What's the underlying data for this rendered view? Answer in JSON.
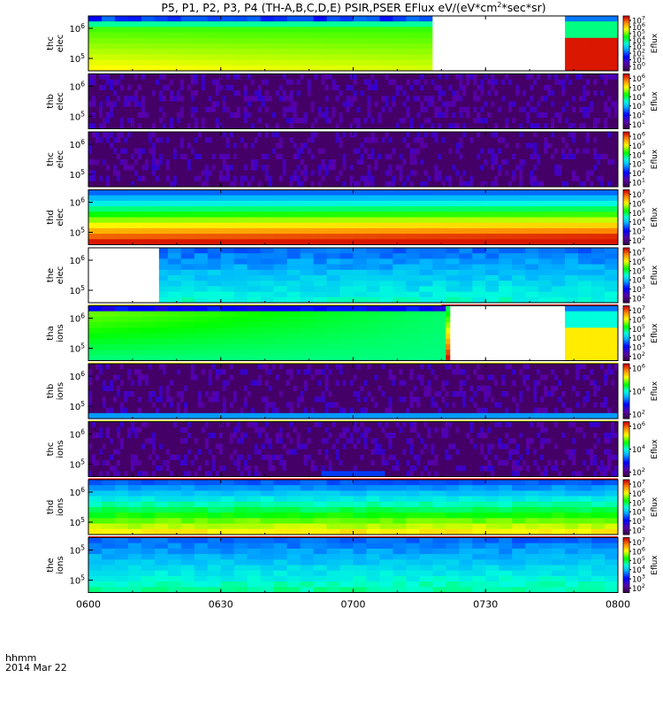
{
  "title_prefix": "P5, P1, P2, P3, P4 (TH-A,B,C,D,E) PSIR,PSER EFlux eV/(eV*cm",
  "title_exp": "2",
  "title_suffix": "*sec*sr)",
  "x_label_line1": "hhmm",
  "x_label_line2": "2014 Mar 22",
  "colors": {
    "panel_background": "#000000",
    "flag_yellow": "#ffff00",
    "flag_red": "#ff0000",
    "gap": "#ffffff"
  },
  "chart_data": {
    "type": "heatmap",
    "x_range": [
      "06:00",
      "08:00"
    ],
    "x_ticks": [
      "0600",
      "0630",
      "0700",
      "0730",
      "0800"
    ],
    "color_scale": "rainbow (purple-blue-cyan-green-yellow-red)",
    "colorbar_label": "Eflux",
    "panels": [
      {
        "name": "thc elec",
        "ylabel": [
          "thc",
          "elec"
        ],
        "y_ticks": [
          "10^6",
          "10^5"
        ],
        "y_scale": "log",
        "colorbar_ticks": [
          "10^7",
          "10^6",
          "10^5",
          "10^4",
          "10^3",
          "10^2",
          "10^1",
          "10^0"
        ],
        "data_gaps": [
          [
            "07:18",
            "07:48"
          ]
        ],
        "flag_bar": null
      },
      {
        "name": "thb elec",
        "ylabel": [
          "thb",
          "elec"
        ],
        "y_ticks": [
          "10^6",
          "10^5"
        ],
        "y_scale": "log",
        "colorbar_ticks": [
          "10^6",
          "10^5",
          "10^4",
          "10^3",
          "10^2",
          "10^1"
        ],
        "data_gaps": [],
        "flag_bar": null
      },
      {
        "name": "thc elec",
        "ylabel": [
          "thc",
          "elec"
        ],
        "y_ticks": [
          "10^6",
          "10^5"
        ],
        "y_scale": "log",
        "colorbar_ticks": [
          "10^6",
          "10^5",
          "10^4",
          "10^3",
          "10^2",
          "10^1"
        ],
        "data_gaps": [],
        "flag_bar": null
      },
      {
        "name": "thd elec",
        "ylabel": [
          "thd",
          "elec"
        ],
        "y_ticks": [
          "10^6",
          "10^5"
        ],
        "y_scale": "log",
        "colorbar_ticks": [
          "10^7",
          "10^6",
          "10^5",
          "10^4",
          "10^3",
          "10^2"
        ],
        "data_gaps": [],
        "flag_bar": null
      },
      {
        "name": "the elec",
        "ylabel": [
          "the",
          "elec"
        ],
        "y_ticks": [
          "10^6",
          "10^5"
        ],
        "y_scale": "log",
        "colorbar_ticks": [
          "10^7",
          "10^6",
          "10^5",
          "10^4",
          "10^3",
          "10^2"
        ],
        "data_gaps": [
          [
            "06:00",
            "06:16"
          ]
        ],
        "flag_bar": {
          "yellow_until": "07:20",
          "red_after": "07:20"
        }
      },
      {
        "name": "tha ions",
        "ylabel": [
          "tha",
          "ions"
        ],
        "y_ticks": [
          "10^6",
          "10^5"
        ],
        "y_scale": "log",
        "colorbar_ticks": [
          "10^7",
          "10^6",
          "10^5",
          "10^4",
          "10^3",
          "10^2"
        ],
        "data_gaps": [
          [
            "07:22",
            "07:48"
          ]
        ],
        "flag_bar": {
          "yellow_until": "08:00",
          "red_after": null
        }
      },
      {
        "name": "thb ions",
        "ylabel": [
          "thb",
          "ions"
        ],
        "y_ticks": [
          "10^6",
          "10^5"
        ],
        "y_scale": "log",
        "colorbar_ticks": [
          "10^6",
          "10^4",
          "10^2"
        ],
        "data_gaps": [],
        "flag_bar": {
          "yellow_until": "08:00",
          "red_after": null
        }
      },
      {
        "name": "thc ions",
        "ylabel": [
          "thc",
          "ions"
        ],
        "y_ticks": [
          "10^6",
          "10^5"
        ],
        "y_scale": "log",
        "colorbar_ticks": [
          "10^6",
          "10^4",
          "10^2"
        ],
        "data_gaps": [],
        "flag_bar": {
          "yellow_until": null,
          "red_after": "06:00"
        }
      },
      {
        "name": "thd ions",
        "ylabel": [
          "thd",
          "ions"
        ],
        "y_ticks": [
          "10^6",
          "10^5"
        ],
        "y_scale": "log",
        "colorbar_ticks": [
          "10^7",
          "10^6",
          "10^5",
          "10^4",
          "10^3",
          "10^2"
        ],
        "data_gaps": [],
        "flag_bar": {
          "yellow_until": null,
          "red_after": "06:00"
        }
      },
      {
        "name": "the ions",
        "ylabel": [
          "the",
          "ions"
        ],
        "y_ticks": [
          "10^5",
          "10^5"
        ],
        "y_scale": "log",
        "colorbar_ticks": [
          "10^7",
          "10^6",
          "10^5",
          "10^4",
          "10^3",
          "10^2"
        ],
        "data_gaps": [],
        "flag_bar": null
      }
    ]
  }
}
